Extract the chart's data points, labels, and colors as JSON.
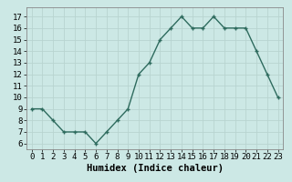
{
  "x": [
    0,
    1,
    2,
    3,
    4,
    5,
    6,
    7,
    8,
    9,
    10,
    11,
    12,
    13,
    14,
    15,
    16,
    17,
    18,
    19,
    20,
    21,
    22,
    23
  ],
  "y": [
    9,
    9,
    8,
    7,
    7,
    7,
    6,
    7,
    8,
    9,
    12,
    13,
    15,
    16,
    17,
    16,
    16,
    17,
    16,
    16,
    16,
    14,
    12,
    10
  ],
  "line_color": "#2e6b5e",
  "marker": "+",
  "bg_color": "#cce8e5",
  "grid_color": "#b8d4d0",
  "xlabel": "Humidex (Indice chaleur)",
  "ylabel_ticks": [
    6,
    7,
    8,
    9,
    10,
    11,
    12,
    13,
    14,
    15,
    16,
    17
  ],
  "ylim": [
    5.5,
    17.8
  ],
  "xlim": [
    -0.5,
    23.5
  ],
  "xticks": [
    0,
    1,
    2,
    3,
    4,
    5,
    6,
    7,
    8,
    9,
    10,
    11,
    12,
    13,
    14,
    15,
    16,
    17,
    18,
    19,
    20,
    21,
    22,
    23
  ],
  "tick_fontsize": 6.5,
  "xlabel_fontsize": 7.5,
  "linewidth": 1.0,
  "markersize": 3.5
}
